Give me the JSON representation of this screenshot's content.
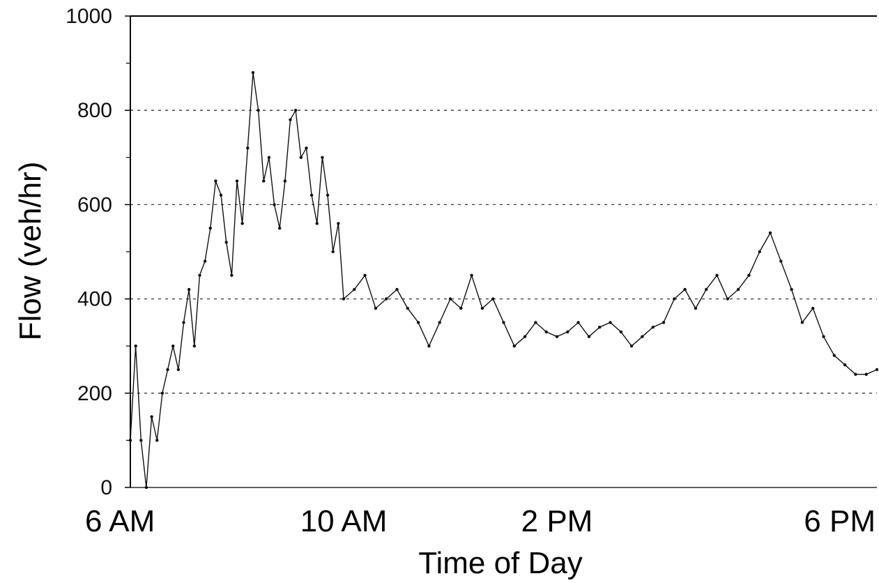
{
  "chart_data": {
    "type": "line",
    "xlabel": "Time of Day",
    "ylabel": "Flow (veh/hr)",
    "ylim": [
      0,
      1000
    ],
    "xlim": [
      6,
      20
    ],
    "grid": "horizontal-dashed",
    "y_ticks": [
      {
        "value": 0,
        "label": "0"
      },
      {
        "value": 200,
        "label": "200"
      },
      {
        "value": 400,
        "label": "400"
      },
      {
        "value": 600,
        "label": "600"
      },
      {
        "value": 800,
        "label": "800"
      },
      {
        "value": 1000,
        "label": "1000"
      }
    ],
    "x_ticks": [
      {
        "hour": 6,
        "label": "6 AM"
      },
      {
        "hour": 10,
        "label": "10 AM"
      },
      {
        "hour": 14,
        "label": "2 PM"
      },
      {
        "hour": 18,
        "label": "6 PM"
      }
    ],
    "series": [
      {
        "x_unit": "hour of day",
        "color": "#111111",
        "points": [
          [
            6.0,
            100
          ],
          [
            6.1,
            300
          ],
          [
            6.2,
            100
          ],
          [
            6.3,
            0
          ],
          [
            6.4,
            150
          ],
          [
            6.5,
            100
          ],
          [
            6.6,
            200
          ],
          [
            6.7,
            250
          ],
          [
            6.8,
            300
          ],
          [
            6.9,
            250
          ],
          [
            7.0,
            350
          ],
          [
            7.1,
            420
          ],
          [
            7.2,
            300
          ],
          [
            7.3,
            450
          ],
          [
            7.4,
            480
          ],
          [
            7.5,
            550
          ],
          [
            7.6,
            650
          ],
          [
            7.7,
            620
          ],
          [
            7.8,
            520
          ],
          [
            7.9,
            450
          ],
          [
            8.0,
            650
          ],
          [
            8.1,
            560
          ],
          [
            8.2,
            720
          ],
          [
            8.3,
            880
          ],
          [
            8.4,
            800
          ],
          [
            8.5,
            650
          ],
          [
            8.6,
            700
          ],
          [
            8.7,
            600
          ],
          [
            8.8,
            550
          ],
          [
            8.9,
            650
          ],
          [
            9.0,
            780
          ],
          [
            9.1,
            800
          ],
          [
            9.2,
            700
          ],
          [
            9.3,
            720
          ],
          [
            9.4,
            620
          ],
          [
            9.5,
            560
          ],
          [
            9.6,
            700
          ],
          [
            9.7,
            620
          ],
          [
            9.8,
            500
          ],
          [
            9.9,
            560
          ],
          [
            10.0,
            400
          ],
          [
            10.2,
            420
          ],
          [
            10.4,
            450
          ],
          [
            10.6,
            380
          ],
          [
            10.8,
            400
          ],
          [
            11.0,
            420
          ],
          [
            11.2,
            380
          ],
          [
            11.4,
            350
          ],
          [
            11.6,
            300
          ],
          [
            11.8,
            350
          ],
          [
            12.0,
            400
          ],
          [
            12.2,
            380
          ],
          [
            12.4,
            450
          ],
          [
            12.6,
            380
          ],
          [
            12.8,
            400
          ],
          [
            13.0,
            350
          ],
          [
            13.2,
            300
          ],
          [
            13.4,
            320
          ],
          [
            13.6,
            350
          ],
          [
            13.8,
            330
          ],
          [
            14.0,
            320
          ],
          [
            14.2,
            330
          ],
          [
            14.4,
            350
          ],
          [
            14.6,
            320
          ],
          [
            14.8,
            340
          ],
          [
            15.0,
            350
          ],
          [
            15.2,
            330
          ],
          [
            15.4,
            300
          ],
          [
            15.6,
            320
          ],
          [
            15.8,
            340
          ],
          [
            16.0,
            350
          ],
          [
            16.2,
            400
          ],
          [
            16.4,
            420
          ],
          [
            16.6,
            380
          ],
          [
            16.8,
            420
          ],
          [
            17.0,
            450
          ],
          [
            17.2,
            400
          ],
          [
            17.4,
            420
          ],
          [
            17.6,
            450
          ],
          [
            17.8,
            500
          ],
          [
            18.0,
            540
          ],
          [
            18.2,
            480
          ],
          [
            18.4,
            420
          ],
          [
            18.6,
            350
          ],
          [
            18.8,
            380
          ],
          [
            19.0,
            320
          ],
          [
            19.2,
            280
          ],
          [
            19.4,
            260
          ],
          [
            19.6,
            240
          ],
          [
            19.8,
            240
          ],
          [
            20.0,
            250
          ]
        ]
      }
    ]
  }
}
